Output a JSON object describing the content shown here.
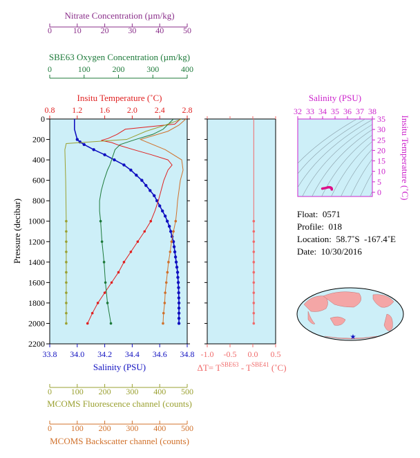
{
  "colors": {
    "nitrate": "#8a2e8a",
    "oxygen": "#1d7a3a",
    "temperature": "#e02020",
    "salinity": "#1010c0",
    "fluorescence": "#9aa030",
    "backscatter": "#d0702a",
    "delta_t": "#f06a6a",
    "ts_frame": "#cc22cc",
    "plot_bg": "#cdeff8"
  },
  "axes": {
    "nitrate": {
      "title": "Nitrate Concentration (µm/kg)",
      "ticks": [
        "0",
        "10",
        "20",
        "30",
        "40",
        "50"
      ]
    },
    "oxygen": {
      "title": "SBE63 Oxygen Concentration (µm/kg)",
      "ticks": [
        "0",
        "100",
        "200",
        "300",
        "400"
      ]
    },
    "temperature": {
      "title": "Insitu Temperature (˚C)",
      "ticks": [
        "0.8",
        "1.2",
        "1.6",
        "2.0",
        "2.4",
        "2.8"
      ]
    },
    "salinity": {
      "title": "Salinity (PSU)",
      "ticks": [
        "33.8",
        "34.0",
        "34.2",
        "34.4",
        "34.6",
        "34.8"
      ]
    },
    "pressure": {
      "title": "Pressure (decibar)",
      "ticks": [
        "0",
        "200",
        "400",
        "600",
        "800",
        "1000",
        "1200",
        "1400",
        "1600",
        "1800",
        "2000",
        "2200"
      ]
    },
    "fluorescence": {
      "title": "MCOMS Fluorescence channel (counts)",
      "ticks": [
        "0",
        "100",
        "200",
        "300",
        "400",
        "500"
      ]
    },
    "backscatter": {
      "title": "MCOMS Backscatter channel (counts)",
      "ticks": [
        "0",
        "100",
        "200",
        "300",
        "400",
        "500"
      ]
    },
    "delta_t": {
      "ticks": [
        "-1.0",
        "-0.5",
        "0.0",
        "0.5"
      ],
      "label_prefix": "ΔT= T",
      "sup1": "SBE63",
      "label_mid": " - T",
      "sup2": "SBE41",
      "label_suffix": " (˚C)"
    },
    "ts_salinity": {
      "title": "Salinity (PSU)",
      "ticks": [
        "32",
        "33",
        "34",
        "35",
        "36",
        "37",
        "38"
      ]
    },
    "ts_temperature": {
      "title": "Insitu Temperature (˚C)",
      "ticks": [
        "0",
        "5",
        "10",
        "15",
        "20",
        "25",
        "30",
        "35"
      ]
    }
  },
  "info": {
    "float": "Float:  0571",
    "profile": "Profile:  018",
    "location": "Location:  58.7˚S  -167.4˚E",
    "date": "Date:  10/30/2016"
  },
  "chart_data": [
    {
      "type": "line",
      "series": [
        {
          "name": "Salinity (PSU)",
          "pressure": [
            0,
            50,
            100,
            150,
            200,
            225,
            250,
            300,
            350,
            400,
            450,
            500,
            550,
            600,
            650,
            700,
            750,
            800,
            850,
            900,
            950,
            1000,
            1050,
            1100,
            1150,
            1200,
            1250,
            1300,
            1350,
            1400,
            1450,
            1500,
            1550,
            1600,
            1650,
            1700,
            1750,
            1800,
            1850,
            1900,
            1950,
            2000
          ],
          "values": [
            33.98,
            33.98,
            33.98,
            33.99,
            34.0,
            34.02,
            34.05,
            34.12,
            34.2,
            34.27,
            34.34,
            34.39,
            34.43,
            34.47,
            34.5,
            34.53,
            34.56,
            34.58,
            34.6,
            34.62,
            34.64,
            34.655,
            34.67,
            34.68,
            34.69,
            34.7,
            34.705,
            34.71,
            34.715,
            34.72,
            34.725,
            34.73,
            34.732,
            34.735,
            34.737,
            34.738,
            34.739,
            34.74,
            34.74,
            34.74,
            34.74,
            34.74
          ]
        },
        {
          "name": "Insitu Temperature (˚C)",
          "pressure": [
            0,
            50,
            100,
            150,
            190,
            210,
            230,
            260,
            300,
            350,
            400,
            450,
            500,
            600,
            700,
            800,
            900,
            1000,
            1100,
            1200,
            1300,
            1400,
            1500,
            1600,
            1700,
            1800,
            1900,
            2000
          ],
          "values": [
            2.7,
            2.62,
            1.9,
            1.78,
            1.65,
            1.55,
            1.7,
            1.82,
            2.02,
            2.28,
            2.52,
            2.58,
            2.52,
            2.46,
            2.42,
            2.38,
            2.33,
            2.27,
            2.18,
            2.08,
            1.98,
            1.88,
            1.8,
            1.7,
            1.6,
            1.5,
            1.42,
            1.35
          ]
        },
        {
          "name": "SBE63 Oxygen Concentration (µm/kg)",
          "pressure": [
            0,
            50,
            100,
            150,
            200,
            250,
            300,
            350,
            400,
            450,
            500,
            600,
            700,
            800,
            900,
            1000,
            1200,
            1400,
            1600,
            1800,
            2000
          ],
          "values": [
            360,
            345,
            330,
            300,
            250,
            205,
            190,
            185,
            180,
            175,
            168,
            158,
            150,
            145,
            145,
            148,
            152,
            158,
            162,
            168,
            178
          ]
        },
        {
          "name": "Nitrate Concentration (µm/kg)",
          "pressure": [
            0,
            60,
            120,
            200,
            240,
            300,
            400,
            500,
            600,
            800,
            1000,
            1100,
            1200,
            1300,
            1400,
            1500,
            1600,
            1700,
            1800,
            1900,
            2000
          ],
          "values": [
            48,
            42,
            35,
            28,
            6,
            5.5,
            5.6,
            5.7,
            5.8,
            5.9,
            6.0,
            6.0,
            6.0,
            6.0,
            6.0,
            6.0,
            6.0,
            6.0,
            6.0,
            6.0,
            6.0
          ]
        },
        {
          "name": "MCOMS Backscatter channel (counts)",
          "pressure": [
            0,
            60,
            120,
            200,
            300,
            400,
            500,
            600,
            700,
            800,
            900,
            1000,
            1100,
            1200,
            1300,
            1400,
            1500,
            1600,
            1700,
            1800,
            1900,
            2000
          ],
          "values": [
            495,
            470,
            430,
            330,
            420,
            480,
            485,
            475,
            470,
            465,
            462,
            458,
            450,
            443,
            438,
            432,
            428,
            424,
            420,
            418,
            414,
            412
          ]
        },
        {
          "name": "ΔT",
          "pressure": [
            0,
            200,
            400,
            600,
            800,
            1000,
            1100,
            1200,
            1300,
            1400,
            1500,
            1600,
            1700,
            1800,
            1900,
            2000
          ],
          "values": [
            0.02,
            0.02,
            0.02,
            0.02,
            0.02,
            0.02,
            0.02,
            0.02,
            0.02,
            0.02,
            0.02,
            0.02,
            0.02,
            0.02,
            0.02,
            0.02
          ]
        }
      ],
      "xlim_salinity": [
        33.8,
        34.8
      ],
      "xlim_temperature": [
        0.8,
        2.8
      ],
      "xlim_oxygen": [
        0,
        400
      ],
      "xlim_nitrate": [
        0,
        50
      ],
      "xlim_counts": [
        0,
        500
      ],
      "xlim_delta_t": [
        -1.0,
        0.5
      ],
      "ylim_pressure": [
        0,
        2200
      ]
    },
    {
      "type": "scatter",
      "series": [
        {
          "salinity": [
            33.98,
            34.05,
            34.15,
            34.27,
            34.39,
            34.47,
            34.53,
            34.58,
            34.62,
            34.655,
            34.68,
            34.7,
            34.71,
            34.72,
            34.73,
            34.735,
            34.738,
            34.74
          ],
          "temperature": [
            1.75,
            1.85,
            1.95,
            2.1,
            2.3,
            2.45,
            2.4,
            2.38,
            2.3,
            2.25,
            2.15,
            2.05,
            1.95,
            1.85,
            1.75,
            1.65,
            1.5,
            1.35
          ]
        }
      ],
      "xlim": [
        32,
        38
      ],
      "ylim": [
        -2,
        35
      ]
    }
  ]
}
